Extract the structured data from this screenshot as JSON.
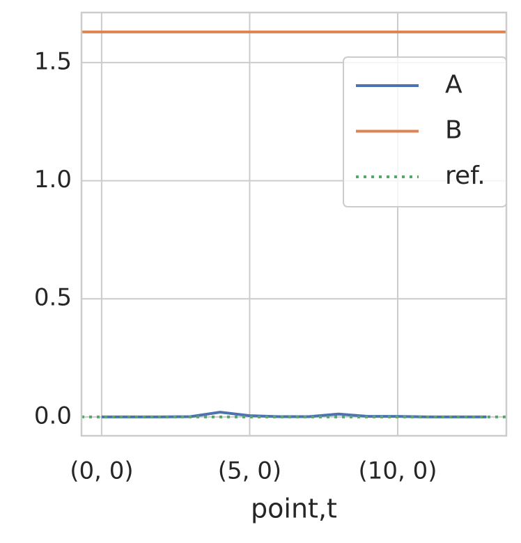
{
  "chart_data": {
    "type": "line",
    "x_label": "point,t",
    "x": [
      0,
      1,
      2,
      3,
      4,
      5,
      6,
      7,
      8,
      9,
      10,
      11,
      12,
      13
    ],
    "xlim": [
      -0.68,
      13.67
    ],
    "xticks": [
      {
        "value": 0,
        "label": "(0, 0)"
      },
      {
        "value": 5,
        "label": "(5, 0)"
      },
      {
        "value": 10,
        "label": "(10, 0)"
      }
    ],
    "ylim": [
      -0.08,
      1.712
    ],
    "yticks": [
      {
        "value": 0,
        "label": "0.0"
      },
      {
        "value": 0.5,
        "label": "0.5"
      },
      {
        "value": 1,
        "label": "1.0"
      },
      {
        "value": 1.5,
        "label": "1.5"
      }
    ],
    "grid": true,
    "legend": "upper right",
    "series": [
      {
        "name": "A",
        "color": "#4c72b0",
        "style": "solid",
        "values": [
          0,
          0,
          0,
          0.001,
          0.02,
          0.005,
          0.001,
          0.001,
          0.012,
          0.002,
          0.002,
          0,
          0,
          0
        ]
      },
      {
        "name": "B",
        "color": "#dd8452",
        "style": "solid",
        "hline": 1.63
      },
      {
        "name": "ref.",
        "color": "#55a868",
        "style": "dotted",
        "hline": 0
      }
    ]
  }
}
